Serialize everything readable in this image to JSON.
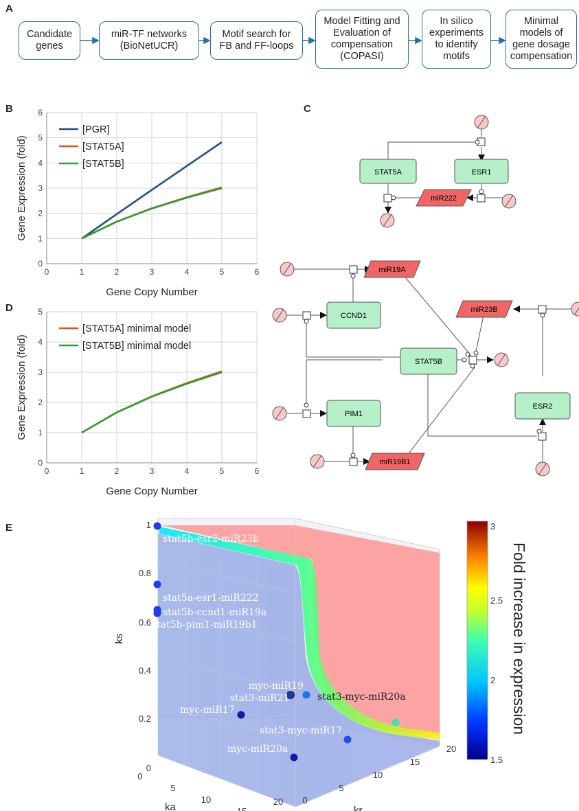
{
  "panels": {
    "a": "A",
    "b": "B",
    "c": "C",
    "d": "D",
    "e": "E"
  },
  "pipeline": [
    "Candidate\ngenes",
    "miR-TF networks\n(BioNetUCR)",
    "Motif search for\nFB and FF-loops",
    "Model Fitting and\nEvaluation of\ncompensation\n(COPASI)",
    "In silico\nexperiments\nto identify\nmotifs",
    "Minimal\nmodels of\ngene dosage\ncompensation"
  ],
  "network_top": {
    "nodes": [
      "STAT5A",
      "ESR1",
      "miR222"
    ]
  },
  "network_bottom": {
    "nodes": [
      "miR19A",
      "CCND1",
      "miR23B",
      "STAT5B",
      "PIM1",
      "ESR2",
      "miR19B1"
    ]
  },
  "colors": {
    "pgr": "#1f4e8c",
    "stat5a": "#ee4a1f",
    "stat5b": "#2ca02c",
    "gene_fill": "#b5f0c8",
    "mir_fill": "#f06565",
    "sink_fill": "#f9c9c9"
  },
  "chart_data": [
    {
      "type": "line",
      "panel": "B",
      "xlabel": "Gene Copy Number",
      "ylabel": "Gene Expression (fold)",
      "xlim": [
        0,
        6
      ],
      "ylim": [
        0,
        6
      ],
      "xticks": [
        "0",
        "1",
        "2",
        "3",
        "4",
        "5",
        "6"
      ],
      "yticks": [
        "0",
        "1",
        "2",
        "3",
        "4",
        "5",
        "6"
      ],
      "grid": true,
      "legend": "top-left",
      "x": [
        1,
        2,
        3,
        4,
        5
      ],
      "series": [
        {
          "name": "[PGR]",
          "values": [
            1.0,
            1.97,
            2.93,
            3.88,
            4.83
          ]
        },
        {
          "name": "[STAT5A]",
          "values": [
            1.0,
            1.67,
            2.2,
            2.64,
            3.03
          ]
        },
        {
          "name": "[STAT5B]",
          "values": [
            1.0,
            1.67,
            2.19,
            2.62,
            3.0
          ]
        }
      ]
    },
    {
      "type": "line",
      "panel": "D",
      "xlabel": "Gene Copy Number",
      "ylabel": "Gene Expression (fold)",
      "xlim": [
        0,
        6
      ],
      "ylim": [
        0,
        5
      ],
      "xticks": [
        "0",
        "1",
        "2",
        "3",
        "4",
        "5",
        "6"
      ],
      "yticks": [
        "0",
        "1",
        "2",
        "3",
        "4",
        "5"
      ],
      "grid": true,
      "legend": "top-left",
      "x": [
        1,
        2,
        3,
        4,
        5
      ],
      "series": [
        {
          "name": "[STAT5A] minimal model",
          "values": [
            1.0,
            1.67,
            2.2,
            2.64,
            3.03
          ]
        },
        {
          "name": "[STAT5B] minimal model",
          "values": [
            1.0,
            1.67,
            2.19,
            2.62,
            3.0
          ]
        }
      ]
    },
    {
      "type": "scatter",
      "panel": "E",
      "xlabel": "ka",
      "ylabel": "ks",
      "zlabel": "kr",
      "xlim": [
        0,
        20
      ],
      "ylim": [
        0,
        1
      ],
      "zlim": [
        0,
        20
      ],
      "yticks": [
        "0",
        "0.2",
        "0.4",
        "0.6",
        "0.8",
        "1"
      ],
      "xticks": [
        "0",
        "5",
        "10",
        "15",
        "20"
      ],
      "zticks": [
        "0",
        "5",
        "10",
        "15",
        "20"
      ],
      "colorbar": {
        "label": "Fold increase in expression",
        "min": 1.5,
        "max": 3,
        "ticks": [
          "1.5",
          "2",
          "2.5",
          "3"
        ]
      },
      "points": [
        {
          "label": "stat5b-esr2-miR23b",
          "fold": 1.8
        },
        {
          "label": "stat5a-esr1-miR222",
          "fold": 1.75
        },
        {
          "label": "stat5b-ccnd1-miR19a",
          "fold": 1.8
        },
        {
          "label": "stat5b-pim1-miR19b1",
          "fold": 1.8
        },
        {
          "label": "myc-miR19",
          "fold": 1.9
        },
        {
          "label": "stat3-miR21",
          "fold": 1.7
        },
        {
          "label": "stat3-myc-miR20a",
          "fold": 2.2
        },
        {
          "label": "myc-miR17",
          "fold": 1.6
        },
        {
          "label": "stat3-myc-miR17",
          "fold": 1.7
        },
        {
          "label": "myc-miR20a",
          "fold": 1.55
        }
      ]
    }
  ]
}
